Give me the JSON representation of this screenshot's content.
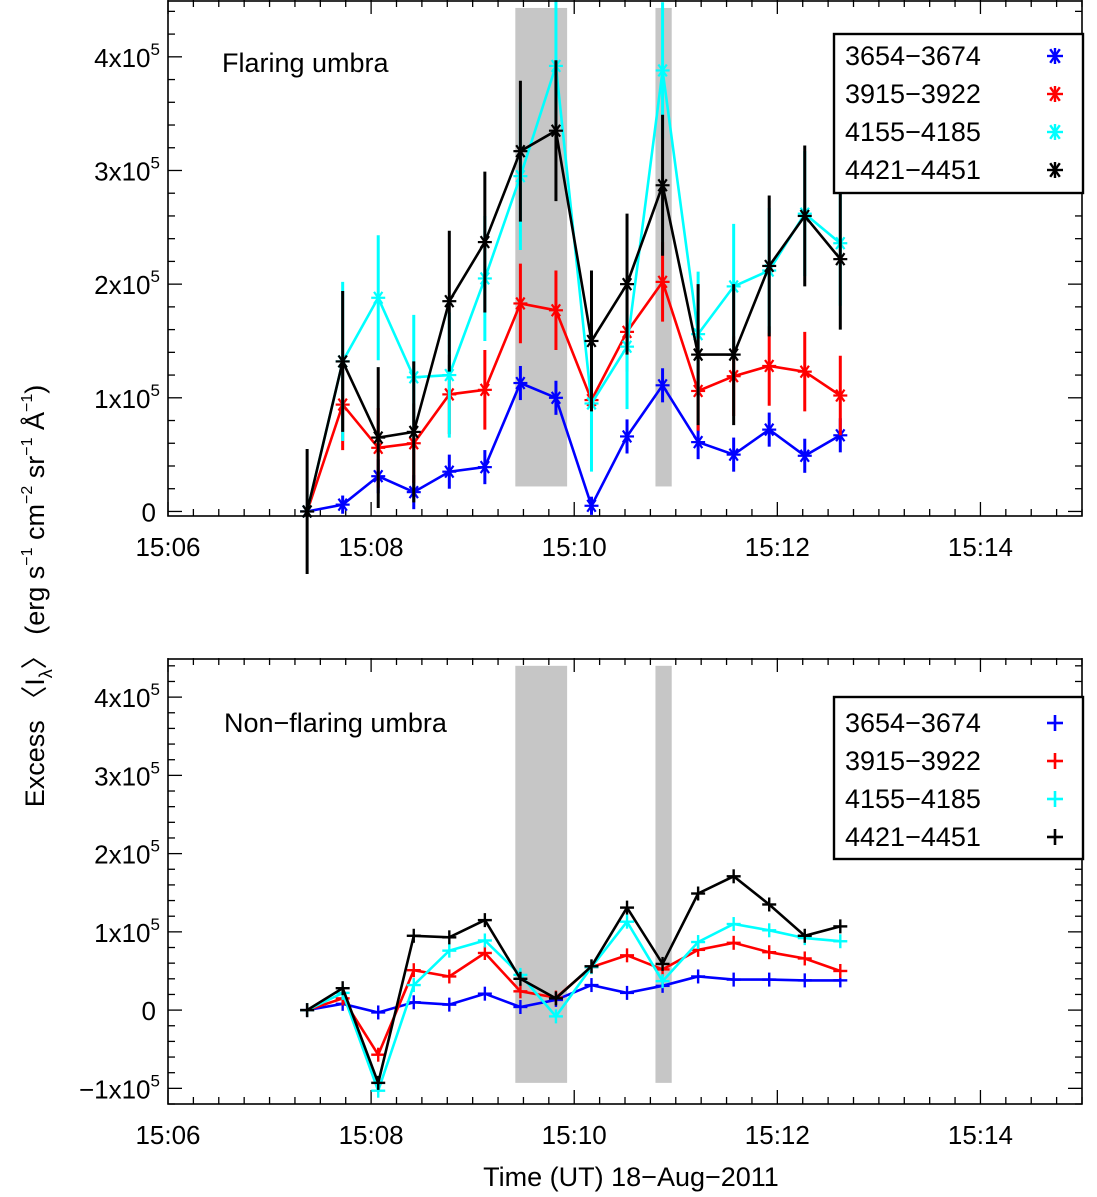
{
  "chart_data": [
    {
      "type": "line",
      "annotation": "Flaring umbra",
      "marker": "asterisk",
      "x_unit": "minutes after 15:00 UT",
      "xlim": [
        6,
        15
      ],
      "ylim": [
        -4000,
        450000
      ],
      "x_tick_values": [
        6,
        8,
        10,
        12,
        14
      ],
      "x_tick_labels": [
        "15:06",
        "15:08",
        "15:10",
        "15:12",
        "15:14"
      ],
      "y_ticks": [
        {
          "value": 0,
          "base": "0",
          "exp": ""
        },
        {
          "value": 100000,
          "base": "1x10",
          "exp": "5"
        },
        {
          "value": 200000,
          "base": "2x10",
          "exp": "5"
        },
        {
          "value": 300000,
          "base": "3x10",
          "exp": "5"
        },
        {
          "value": 400000,
          "base": "4x10",
          "exp": "5"
        }
      ],
      "shaded_intervals": [
        {
          "x0": 9.42,
          "x1": 9.93,
          "y0": 22000,
          "y1": 443000
        },
        {
          "x0": 10.8,
          "x1": 10.96,
          "y0": 22000,
          "y1": 443000
        }
      ],
      "legend_position": "top-right",
      "x": [
        7.37,
        7.72,
        8.07,
        8.42,
        8.77,
        9.12,
        9.47,
        9.82,
        10.17,
        10.52,
        10.87,
        11.22,
        11.57,
        11.92,
        12.27,
        12.62
      ],
      "series": [
        {
          "name": "3654−3674",
          "color": "#0000ff",
          "values": [
            0,
            6000,
            31000,
            17000,
            35000,
            39000,
            113000,
            100000,
            5000,
            66000,
            111000,
            61000,
            50000,
            72000,
            49000,
            67000
          ],
          "errors": [
            0,
            8000,
            15000,
            15000,
            15000,
            15000,
            15000,
            15000,
            8000,
            15000,
            15000,
            15000,
            15000,
            15000,
            15000,
            15000
          ]
        },
        {
          "name": "3915−3922",
          "color": "#ff0000",
          "values": [
            0,
            94000,
            56000,
            60000,
            103000,
            107000,
            183000,
            177000,
            98000,
            158000,
            202000,
            106000,
            119000,
            128000,
            123000,
            102000
          ],
          "errors": [
            0,
            40000,
            35000,
            35000,
            35000,
            35000,
            35000,
            35000,
            35000,
            35000,
            35000,
            35000,
            35000,
            35000,
            35000,
            35000
          ]
        },
        {
          "name": "4155−4185",
          "color": "#00ffff",
          "values": [
            0,
            132000,
            188000,
            118000,
            120000,
            205000,
            295000,
            392000,
            95000,
            145000,
            388000,
            156000,
            198000,
            212000,
            262000,
            236000
          ],
          "errors": [
            0,
            70000,
            55000,
            55000,
            55000,
            55000,
            65000,
            60000,
            60000,
            55000,
            60000,
            55000,
            55000,
            55000,
            55000,
            55000
          ]
        },
        {
          "name": "4421−4451",
          "color": "#000000",
          "values": [
            0,
            132000,
            65000,
            70000,
            185000,
            237000,
            317000,
            335000,
            150000,
            200000,
            287000,
            138000,
            138000,
            216000,
            260000,
            222000
          ],
          "errors": [
            55000,
            62000,
            62000,
            62000,
            62000,
            62000,
            62000,
            62000,
            62000,
            62000,
            62000,
            62000,
            62000,
            62000,
            62000,
            62000
          ]
        }
      ]
    },
    {
      "type": "line",
      "annotation": "Non−flaring umbra",
      "marker": "plus",
      "x_unit": "minutes after 15:00 UT",
      "xlim": [
        6,
        15
      ],
      "ylim": [
        -120000,
        450000
      ],
      "x_tick_values": [
        6,
        8,
        10,
        12,
        14
      ],
      "x_tick_labels": [
        "15:06",
        "15:08",
        "15:10",
        "15:12",
        "15:14"
      ],
      "y_ticks": [
        {
          "value": -100000,
          "base": "−1x10",
          "exp": "5"
        },
        {
          "value": 0,
          "base": "0",
          "exp": ""
        },
        {
          "value": 100000,
          "base": "1x10",
          "exp": "5"
        },
        {
          "value": 200000,
          "base": "2x10",
          "exp": "5"
        },
        {
          "value": 300000,
          "base": "3x10",
          "exp": "5"
        },
        {
          "value": 400000,
          "base": "4x10",
          "exp": "5"
        }
      ],
      "shaded_intervals": [
        {
          "x0": 9.42,
          "x1": 9.93,
          "y0": -93000,
          "y1": 440000
        },
        {
          "x0": 10.8,
          "x1": 10.96,
          "y0": -93000,
          "y1": 440000
        }
      ],
      "legend_position": "top-right",
      "x": [
        7.37,
        7.72,
        8.07,
        8.42,
        8.77,
        9.12,
        9.47,
        9.82,
        10.17,
        10.52,
        10.87,
        11.22,
        11.57,
        11.92,
        12.27,
        12.62
      ],
      "series": [
        {
          "name": "3654−3674",
          "color": "#0000ff",
          "values": [
            0,
            8000,
            -3000,
            10000,
            7000,
            21000,
            4000,
            13000,
            32000,
            22000,
            31000,
            43000,
            39000,
            39000,
            38000,
            38000
          ]
        },
        {
          "name": "3915−3922",
          "color": "#ff0000",
          "values": [
            0,
            15000,
            -57000,
            51000,
            43000,
            73000,
            24000,
            16000,
            55000,
            70000,
            52000,
            77000,
            86000,
            74000,
            66000,
            50000
          ]
        },
        {
          "name": "4155−4185",
          "color": "#00ffff",
          "values": [
            0,
            22000,
            -103000,
            32000,
            76000,
            89000,
            45000,
            -8000,
            55000,
            113000,
            37000,
            87000,
            110000,
            102000,
            92000,
            88000
          ]
        },
        {
          "name": "4421−4451",
          "color": "#000000",
          "values": [
            0,
            28000,
            -93000,
            95000,
            93000,
            115000,
            40000,
            15000,
            56000,
            131000,
            59000,
            149000,
            171000,
            135000,
            95000,
            107000
          ]
        }
      ]
    }
  ],
  "xlabel": "Time (UT) 18−Aug−2011",
  "ylabel": {
    "main": "Excess 〈I",
    "sub": "λ",
    "rest": "〉 (erg s",
    "units": [
      {
        "text": " cm",
        "exp": "−2"
      },
      {
        "text": " sr",
        "exp": "−1"
      },
      {
        "text": " Å",
        "exp": "−1"
      }
    ],
    "first_exp": "−1",
    "close": ")"
  }
}
